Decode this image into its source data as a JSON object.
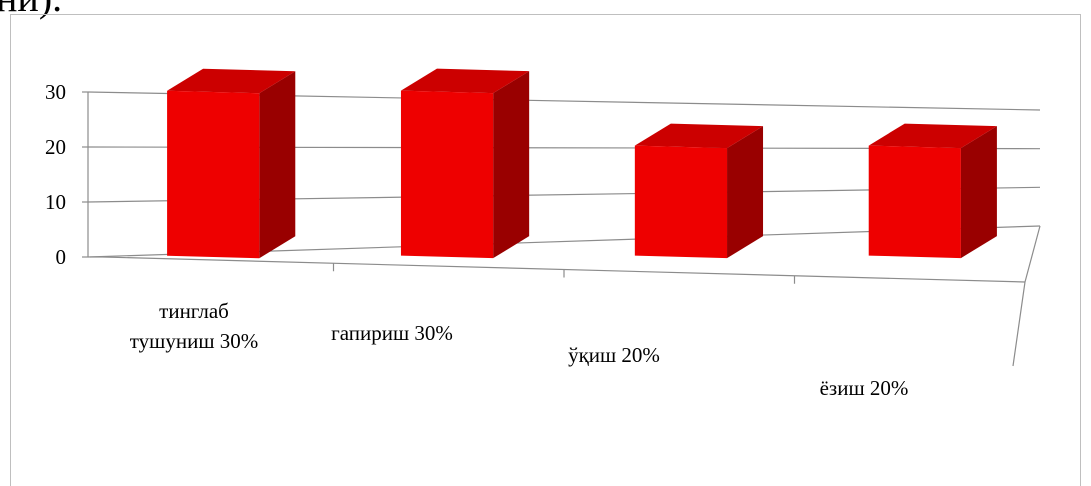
{
  "page": {
    "title_fragment": "ни)."
  },
  "chart_data": {
    "type": "bar",
    "categories": [
      "тинглаб тушуниш 30%",
      "гапириш  30%",
      "ўқиш 20%",
      "ёзиш 20%"
    ],
    "category_lines": [
      [
        "тинглаб",
        "тушуниш 30%"
      ],
      [
        "гапириш  30%"
      ],
      [
        "ўқиш 20%"
      ],
      [
        "ёзиш 20%"
      ]
    ],
    "values": [
      30,
      30,
      20,
      20
    ],
    "ylim": [
      0,
      30
    ],
    "yticks": [
      0,
      10,
      20,
      30
    ],
    "title": "",
    "xlabel": "",
    "ylabel": "",
    "grid": true,
    "legend": "none",
    "style": "3d",
    "colors": {
      "bar_front": "#ee0000",
      "bar_side": "#990000",
      "bar_top": "#cc0000",
      "grid": "#8c8c8c",
      "frame": "#bfbfbf"
    }
  }
}
